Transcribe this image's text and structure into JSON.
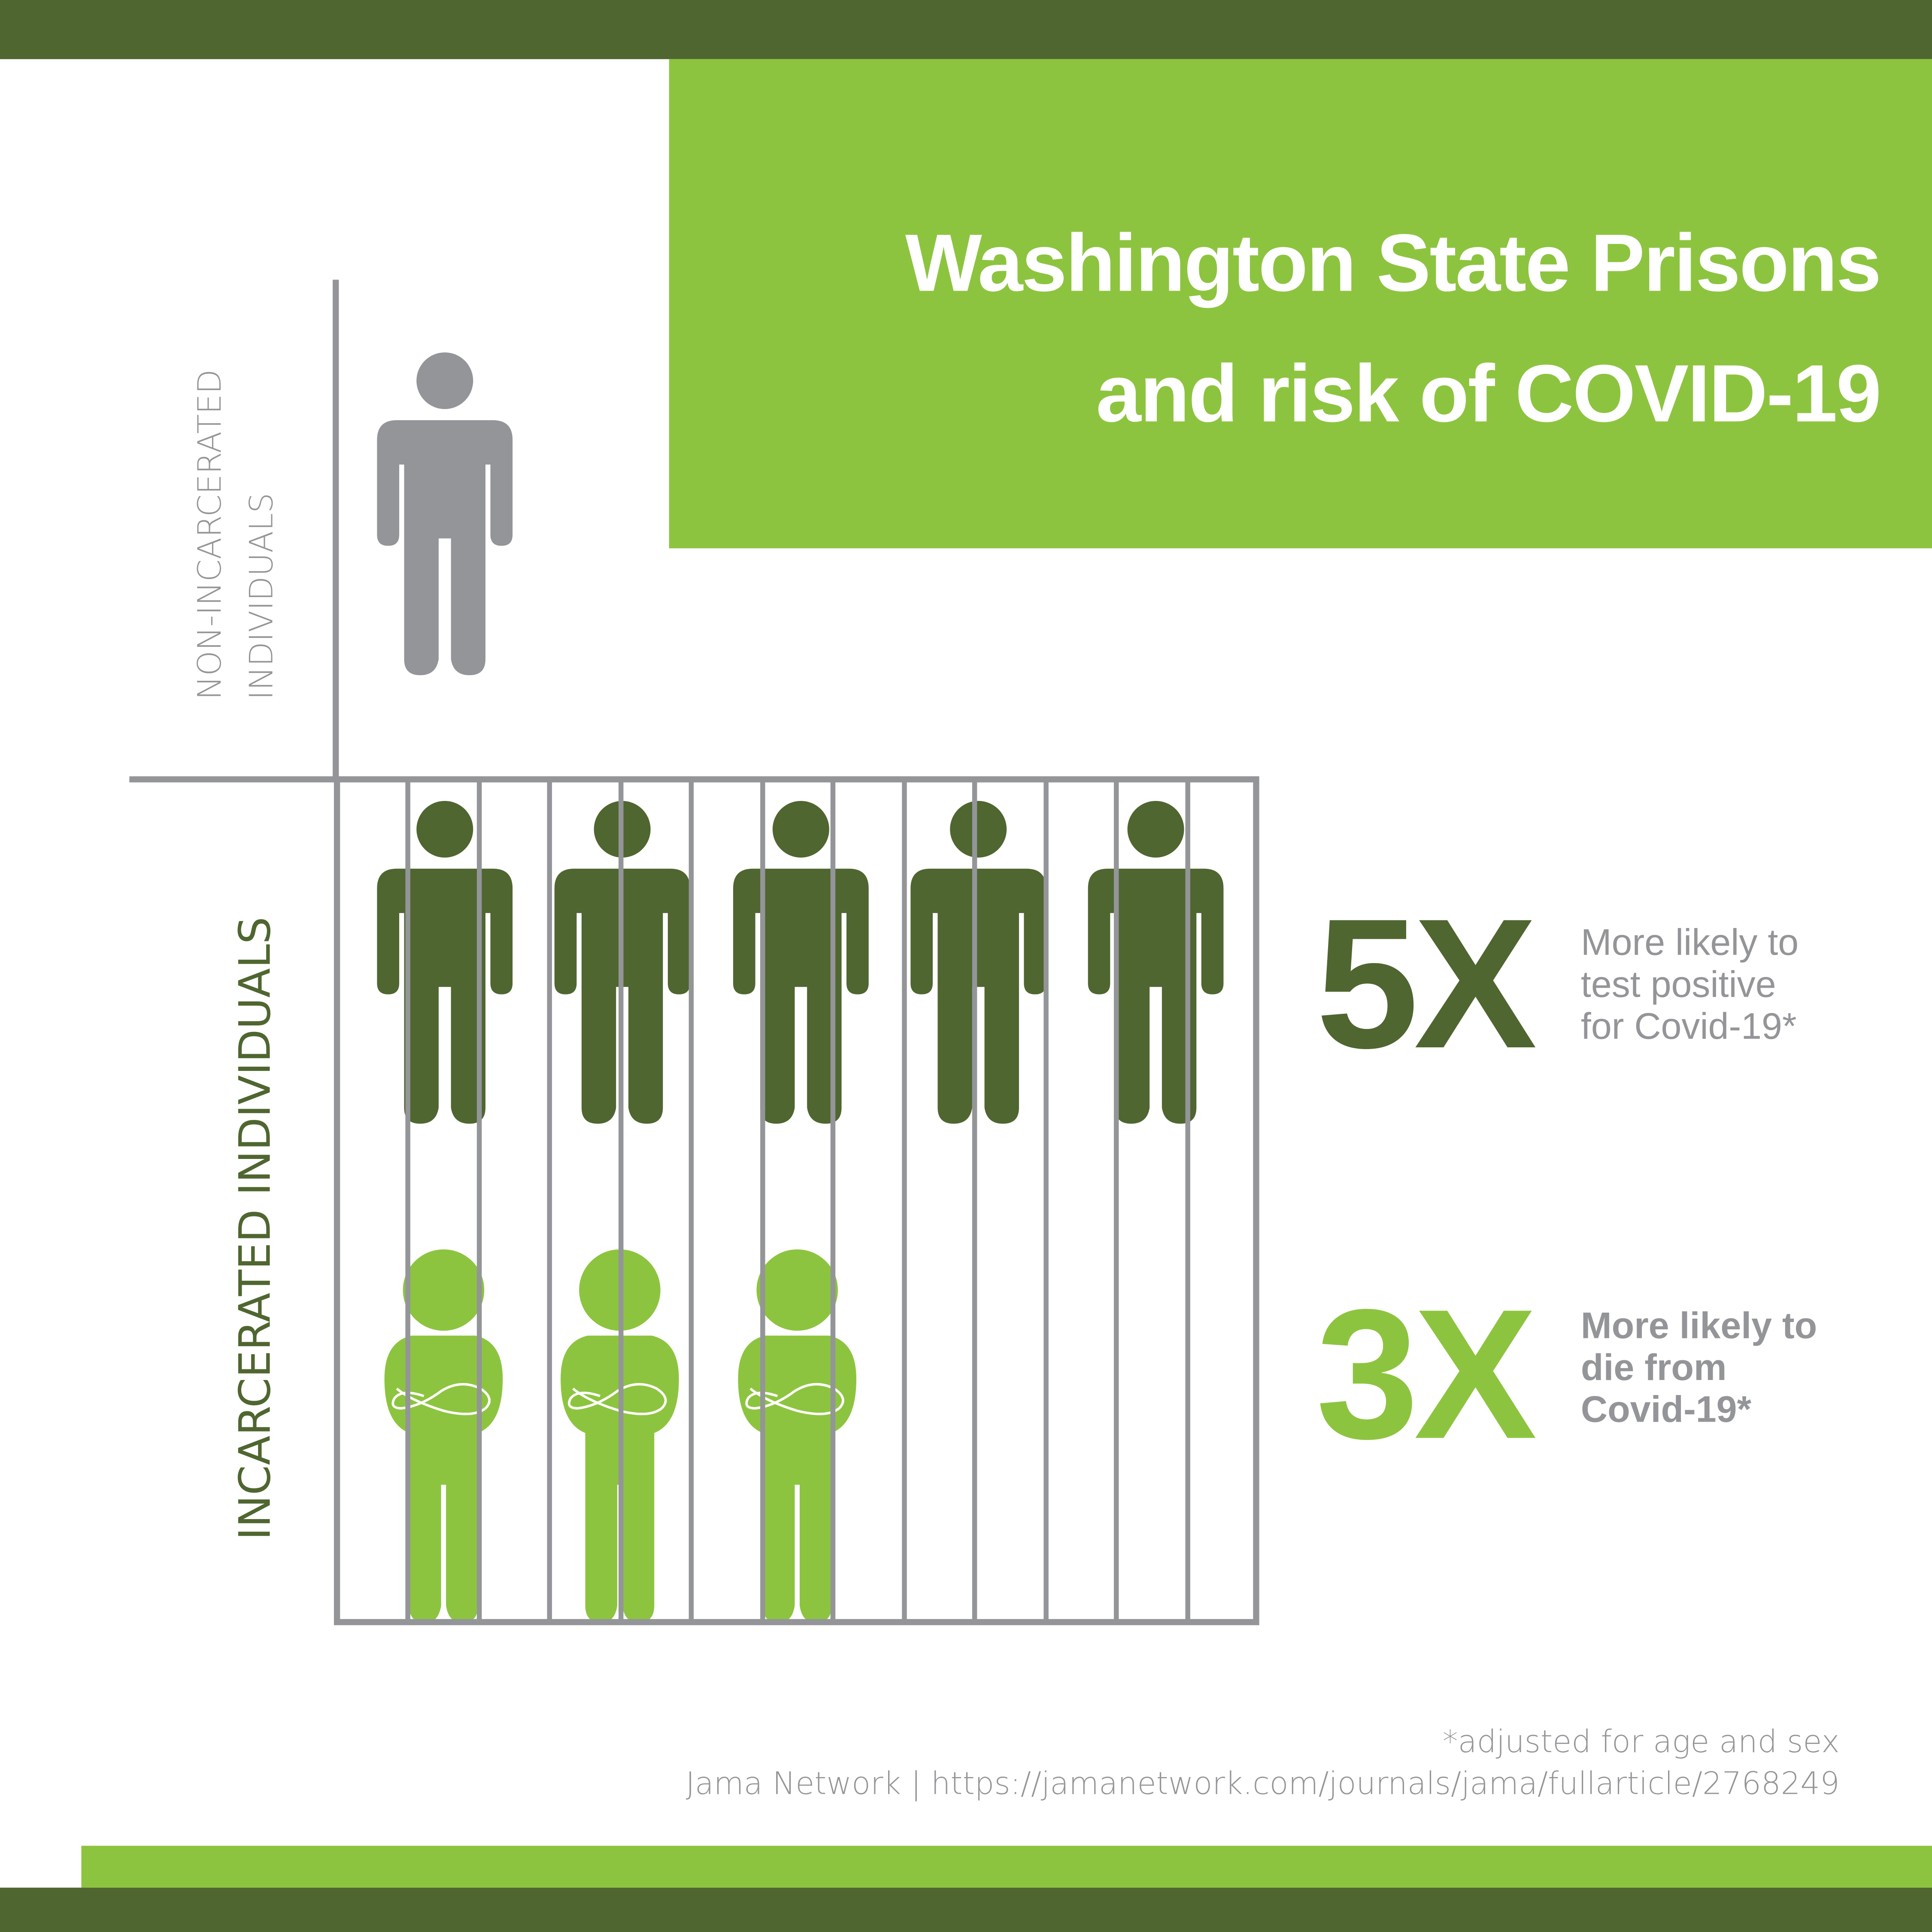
{
  "colors": {
    "dark_green": "#4f6630",
    "light_green": "#8dc43f",
    "gray": "#939598",
    "white": "#ffffff"
  },
  "title": {
    "line1": "Washington State Prisons",
    "line2": "and risk of COVID-19"
  },
  "labels": {
    "non_incarcerated_line1": "NON-INCARCERATED",
    "non_incarcerated_line2": "INDIVIDUALS",
    "incarcerated": "INCARCERATED INDIVIDUALS"
  },
  "stats": [
    {
      "value": "5X",
      "line1": "More likely to",
      "line2": "test positive",
      "line3": "for Covid-19*",
      "color": "#4f6630"
    },
    {
      "value": "3X",
      "line1": "More likely to",
      "line2": "die from",
      "line3": "Covid-19*",
      "color": "#8dc43f"
    }
  ],
  "icons": {
    "non_incarcerated": "person-icon",
    "positive": "person-icon",
    "deceased": "person-arms-crossed-icon"
  },
  "footer": {
    "note": "*adjusted for age and sex",
    "source": "Jama Network | https://jamanetwork.com/journals/jama/fullarticle/2768249"
  }
}
